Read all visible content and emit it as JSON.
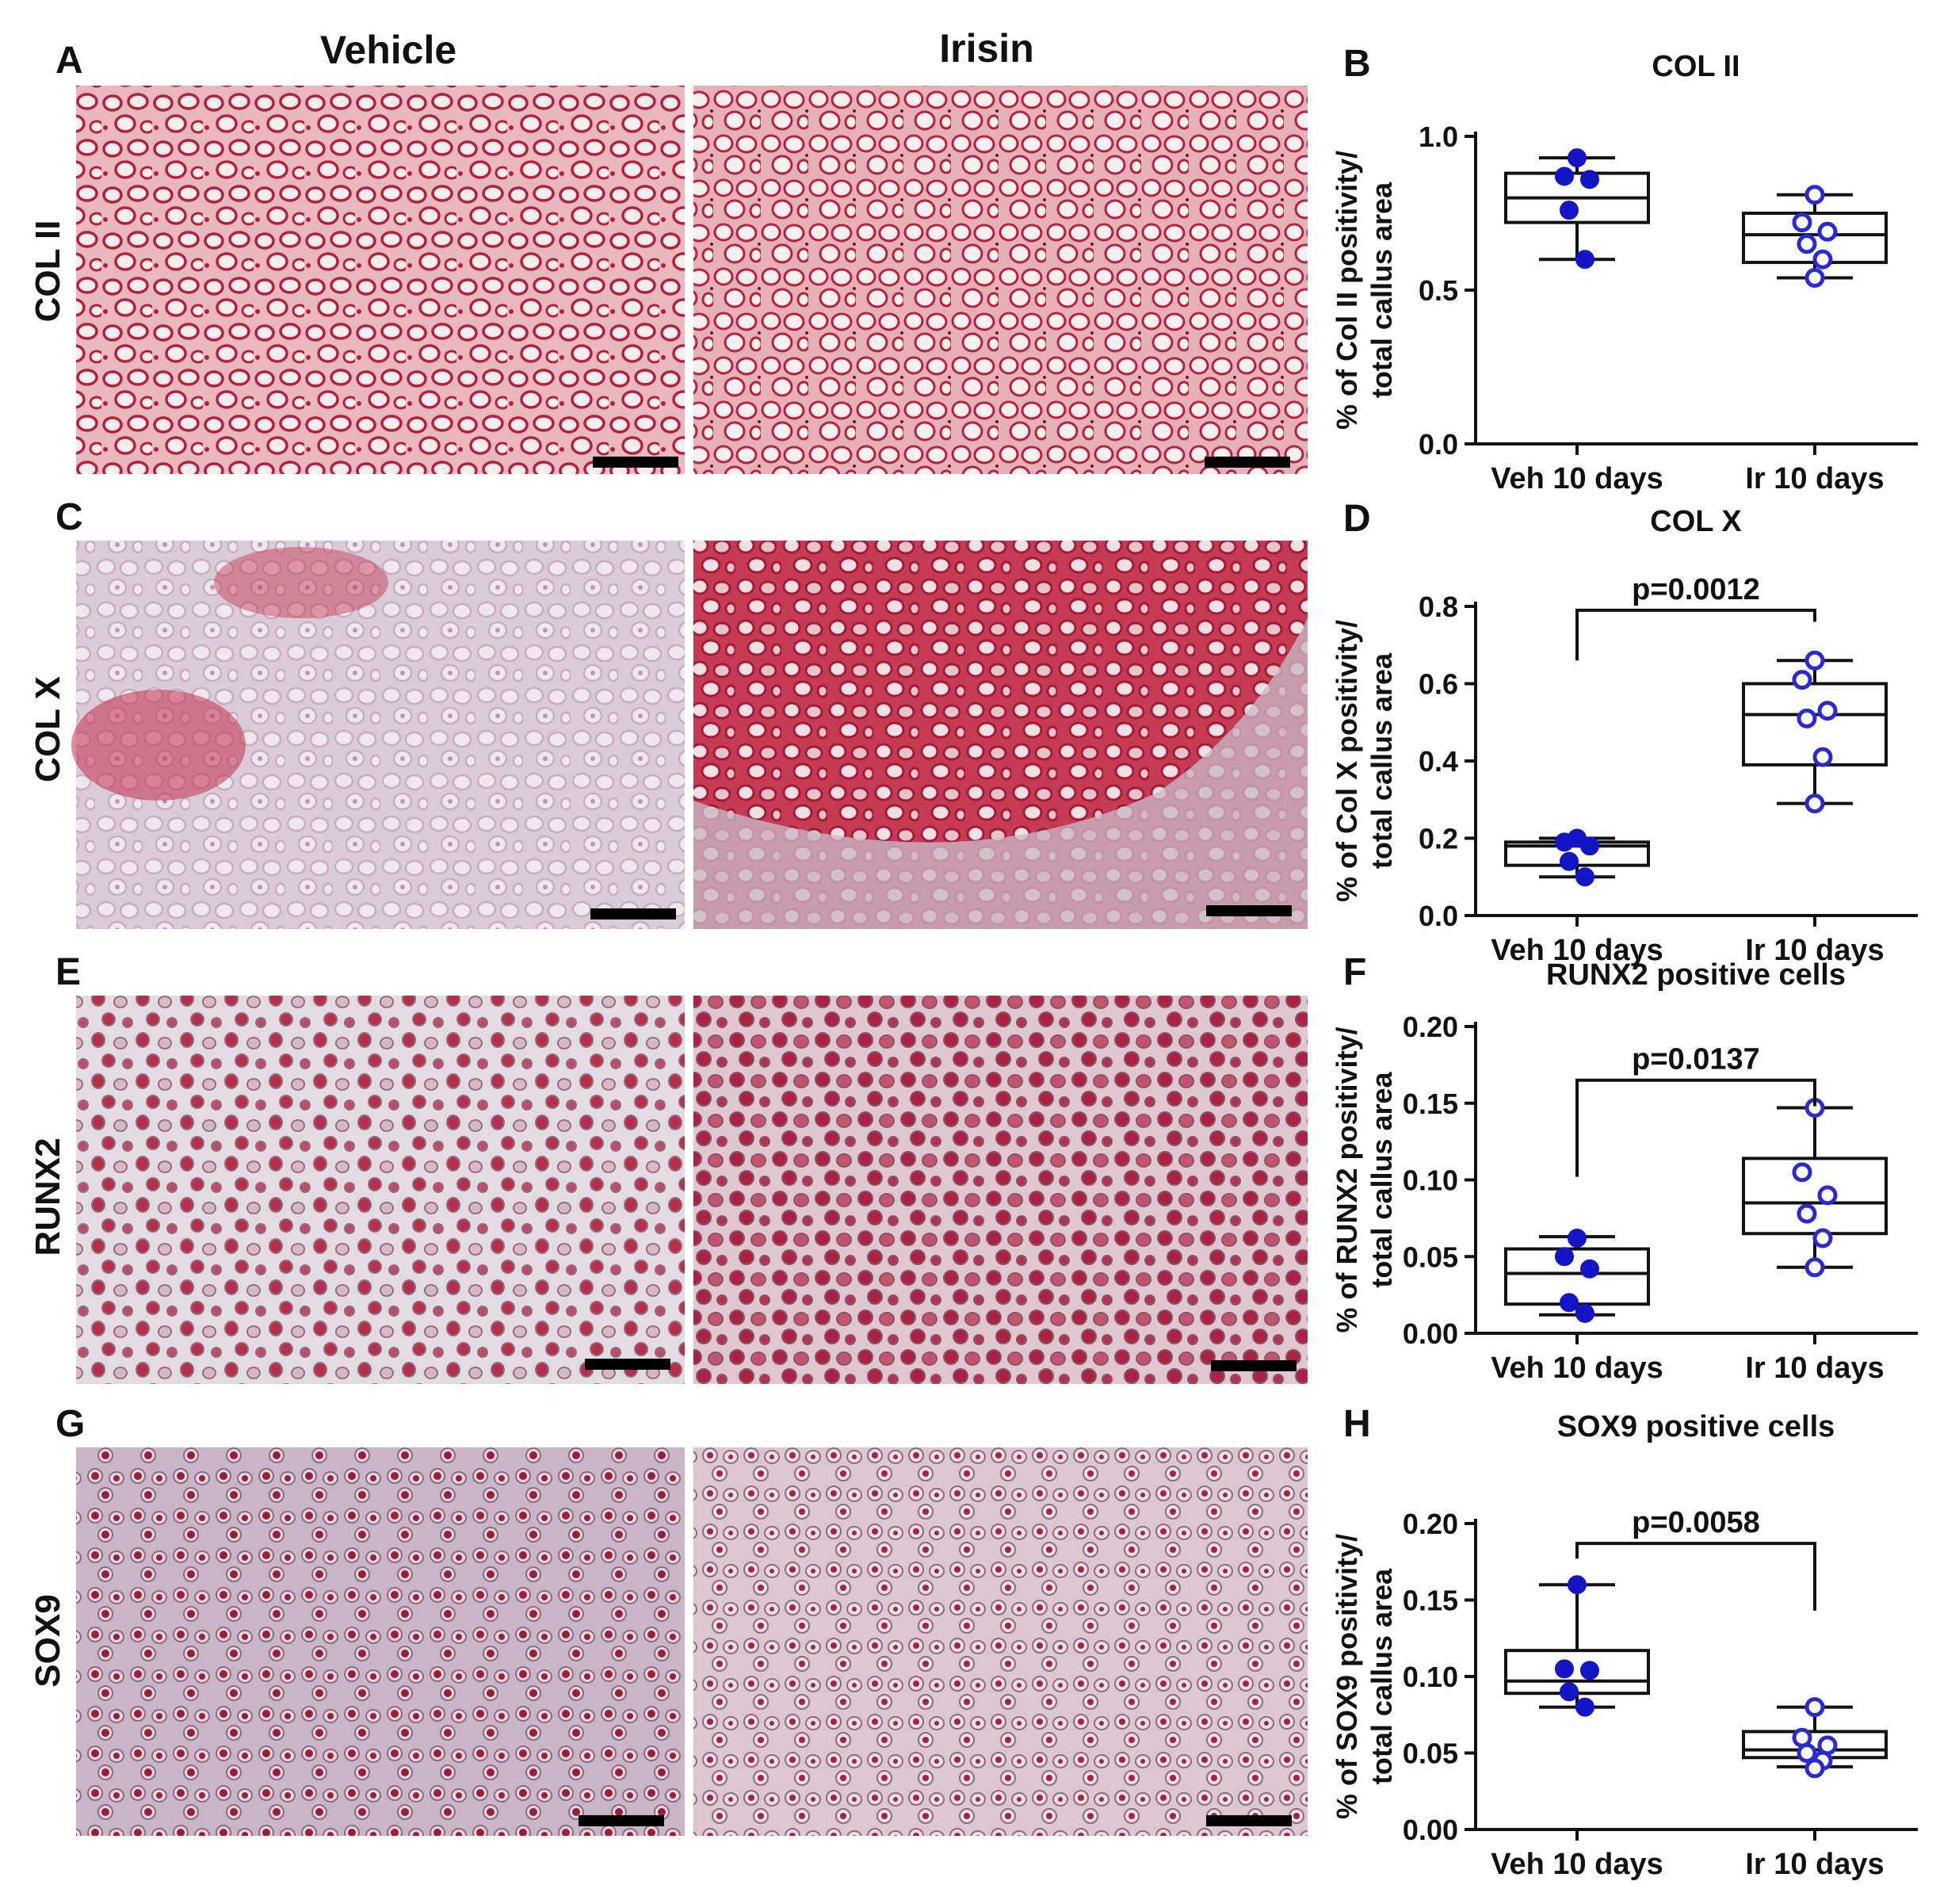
{
  "headers": {
    "vehicle": "Vehicle",
    "irisin": "Irisin"
  },
  "rows": [
    {
      "letter": "A",
      "label": "COL II",
      "vehicle": {
        "bg": "#e9b8bf",
        "cell": "#f6ecee",
        "stain": "#b51f3a"
      },
      "irisin": {
        "bg": "#e5b0b8",
        "cell": "#f7eef0",
        "stain": "#b8213d"
      }
    },
    {
      "letter": "C",
      "label": "COL X",
      "vehicle": {
        "bg": "#d9cbd7",
        "cell": "#eee7ee",
        "stain": "#c5304e"
      },
      "irisin": {
        "bg": "#c53b53",
        "cell": "#f2dfe4",
        "stain": "#a51a34"
      }
    },
    {
      "letter": "E",
      "label": "RUNX2",
      "vehicle": {
        "bg": "#e3dbe1",
        "cell": "#d9b6c0",
        "stain": "#b8304a"
      },
      "irisin": {
        "bg": "#e0c7cf",
        "cell": "#d4a7b3",
        "stain": "#ad2241"
      }
    },
    {
      "letter": "G",
      "label": "SOX9",
      "vehicle": {
        "bg": "#c9b5c5",
        "cell": "#e6d7e0",
        "stain": "#9c1d36"
      },
      "irisin": {
        "bg": "#ddc6d0",
        "cell": "#eadde4",
        "stain": "#a32340"
      }
    }
  ],
  "chart_data": [
    {
      "panel": "B",
      "type": "boxplot",
      "title": "COL II",
      "ylabel": [
        "% of Col II positivity/",
        "total callus area"
      ],
      "categories": [
        "Veh 10 days",
        "Ir 10 days"
      ],
      "ylim": [
        0,
        1.0
      ],
      "yticks": [
        "0.0",
        "0.5",
        "1.0"
      ],
      "ytick_values": [
        0,
        0.5,
        1.0
      ],
      "boxes": [
        {
          "min": 0.6,
          "q1": 0.72,
          "median": 0.8,
          "q3": 0.88,
          "max": 0.93
        },
        {
          "min": 0.54,
          "q1": 0.59,
          "median": 0.68,
          "q3": 0.75,
          "max": 0.81
        }
      ],
      "points": [
        [
          0.93,
          0.87,
          0.86,
          0.76,
          0.6
        ],
        [
          0.81,
          0.72,
          0.69,
          0.65,
          0.6,
          0.54
        ]
      ],
      "significance": null
    },
    {
      "panel": "D",
      "type": "boxplot",
      "title": "COL X",
      "ylabel": [
        "% of Col X positivity/",
        "total callus area"
      ],
      "categories": [
        "Veh 10 days",
        "Ir 10 days"
      ],
      "ylim": [
        0,
        0.8
      ],
      "yticks": [
        "0.0",
        "0.2",
        "0.4",
        "0.6",
        "0.8"
      ],
      "ytick_values": [
        0,
        0.2,
        0.4,
        0.6,
        0.8
      ],
      "boxes": [
        {
          "min": 0.1,
          "q1": 0.13,
          "median": 0.18,
          "q3": 0.19,
          "max": 0.2
        },
        {
          "min": 0.29,
          "q1": 0.39,
          "median": 0.52,
          "q3": 0.6,
          "max": 0.66
        }
      ],
      "points": [
        [
          0.2,
          0.19,
          0.18,
          0.14,
          0.1
        ],
        [
          0.66,
          0.61,
          0.53,
          0.51,
          0.41,
          0.29
        ]
      ],
      "significance": {
        "text": "p=0.0012",
        "y": 0.79,
        "y_left_end": 0.66,
        "y_right_end": 0.76
      }
    },
    {
      "panel": "F",
      "type": "boxplot",
      "title": "RUNX2 positive cells",
      "ylabel": [
        "% of RUNX2 positivity/",
        "total callus area"
      ],
      "categories": [
        "Veh 10 days",
        "Ir 10 days"
      ],
      "ylim": [
        0,
        0.2
      ],
      "yticks": [
        "0.00",
        "0.05",
        "0.10",
        "0.15",
        "0.20"
      ],
      "ytick_values": [
        0,
        0.05,
        0.1,
        0.15,
        0.2
      ],
      "boxes": [
        {
          "min": 0.012,
          "q1": 0.019,
          "median": 0.039,
          "q3": 0.055,
          "max": 0.063
        },
        {
          "min": 0.043,
          "q1": 0.065,
          "median": 0.085,
          "q3": 0.114,
          "max": 0.147
        }
      ],
      "points": [
        [
          0.062,
          0.05,
          0.042,
          0.02,
          0.013
        ],
        [
          0.147,
          0.105,
          0.09,
          0.078,
          0.062,
          0.043
        ]
      ],
      "significance": {
        "text": "p=0.0137",
        "y": 0.165,
        "y_left_end": 0.102,
        "y_right_end": 0.148
      }
    },
    {
      "panel": "H",
      "type": "boxplot",
      "title": "SOX9 positive cells",
      "ylabel": [
        "% of SOX9 positivity/",
        "total callus area"
      ],
      "categories": [
        "Veh 10 days",
        "Ir 10 days"
      ],
      "ylim": [
        0,
        0.2
      ],
      "yticks": [
        "0.00",
        "0.05",
        "0.10",
        "0.15",
        "0.20"
      ],
      "ytick_values": [
        0,
        0.05,
        0.1,
        0.15,
        0.2
      ],
      "boxes": [
        {
          "min": 0.08,
          "q1": 0.089,
          "median": 0.097,
          "q3": 0.117,
          "max": 0.16
        },
        {
          "min": 0.041,
          "q1": 0.047,
          "median": 0.052,
          "q3": 0.064,
          "max": 0.08
        }
      ],
      "points": [
        [
          0.16,
          0.105,
          0.104,
          0.09,
          0.08
        ],
        [
          0.08,
          0.06,
          0.055,
          0.05,
          0.045,
          0.04
        ]
      ],
      "significance": {
        "text": "p=0.0058",
        "y": 0.187,
        "y_left_end": 0.177,
        "y_right_end": 0.143
      }
    }
  ]
}
